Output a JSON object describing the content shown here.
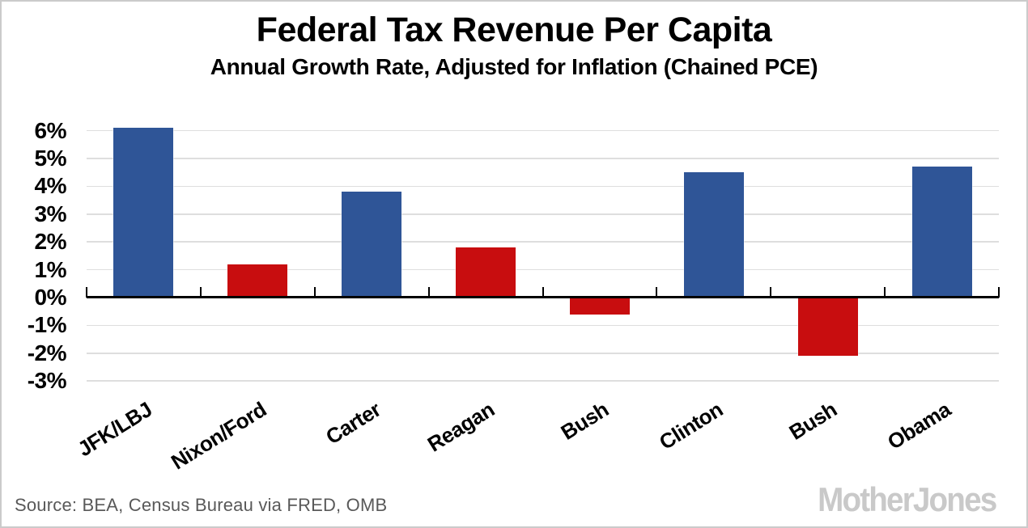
{
  "chart_data": {
    "type": "bar",
    "title": "Federal Tax Revenue Per Capita",
    "subtitle": "Annual Growth Rate, Adjusted for Inflation (Chained PCE)",
    "categories": [
      "JFK/LBJ",
      "Nixon/Ford",
      "Carter",
      "Reagan",
      "Bush",
      "Clinton",
      "Bush",
      "Obama"
    ],
    "values": [
      6.1,
      1.2,
      3.8,
      1.8,
      -0.6,
      4.5,
      -2.1,
      4.7
    ],
    "parties": [
      "democrat",
      "republican",
      "democrat",
      "republican",
      "republican",
      "democrat",
      "republican",
      "democrat"
    ],
    "party_colors": {
      "democrat": "#2F5597",
      "republican": "#C80D0F"
    },
    "xlabel": "",
    "ylabel": "",
    "ylim": [
      -3,
      6.5
    ],
    "ytick_values": [
      6,
      5,
      4,
      3,
      2,
      1,
      0,
      -1,
      -2,
      -3
    ],
    "ytick_labels": [
      "6%",
      "5%",
      "4%",
      "3%",
      "2%",
      "1%",
      "0%",
      "-1%",
      "-2%",
      "-3%"
    ],
    "grid": "horizontal-light",
    "legend": "none",
    "x_label_rotation_deg": -32
  },
  "footer": {
    "source": "Source: BEA, Census Bureau via FRED, OMB",
    "logo_text": "MotherJones"
  },
  "colors": {
    "background": "#ffffff",
    "frame_border": "#cbcbcb",
    "gridline": "#dedede",
    "axis": "#000000",
    "tick_label": "#000000",
    "source_text": "#595959",
    "logo": "#c9c9c9"
  }
}
